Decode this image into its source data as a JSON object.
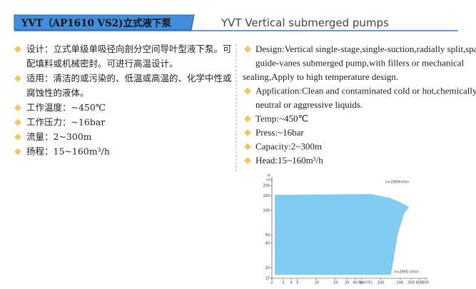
{
  "header": {
    "title_cn": "YVT（AP1610 VS2)立式液下泵",
    "title_en": "YVT Vertical submerged pumps"
  },
  "left": {
    "items": [
      [
        "设计：立式单级单吸径向剖分空间导叶型液下泵。可",
        "配填料或机械密封。可进行高温设计。"
      ],
      [
        "适用：清洁的或污染的、低温或高温的、化学中性或",
        "腐蚀性的液体。"
      ],
      [
        "工作温度：~450℃"
      ],
      [
        "工作压力：~16bar"
      ],
      [
        "流量：2~300m"
      ],
      [
        "扬程：15~160m³/h"
      ]
    ]
  },
  "right": {
    "items": [
      [
        "Design:Vertical single-stage,single-suction,radially split,space",
        "guide-vanes submerged pump,with fillers or mechanical",
        "sealing,Apply to high temperature design."
      ],
      [
        "Application:Clean and contaminated cold or hot,chemically",
        "neutral or aggressive liquids."
      ],
      [
        "Temp:~450℃"
      ],
      [
        "Press:~16bar"
      ],
      [
        "Capacity:2~300m"
      ],
      [
        "Head:15~160m³/h"
      ]
    ]
  },
  "chart": {
    "y_label": "H",
    "y_unit": "(m)",
    "x_label": "Q(m³/h)",
    "note_top": "n=2900r/min",
    "note_bottom": "n=2900 r/min",
    "yticks": [
      15,
      20,
      40,
      50,
      100,
      150,
      200
    ],
    "xticks": [
      2,
      3,
      4,
      5,
      10,
      20,
      30,
      40,
      50,
      100,
      200,
      300,
      400,
      500
    ]
  }
}
